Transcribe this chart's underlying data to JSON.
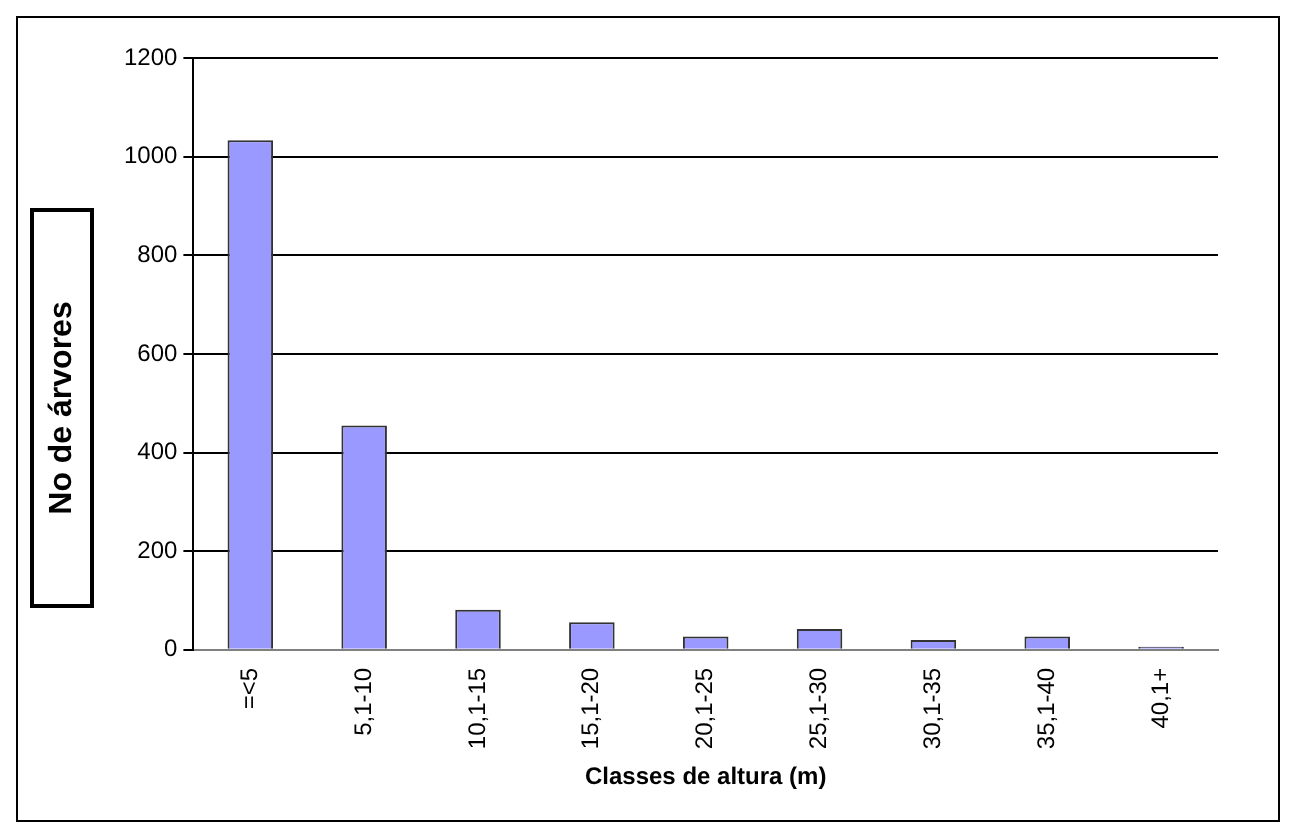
{
  "chart_data": {
    "type": "bar",
    "xlabel": "Classes de altura (m)",
    "ylabel": "No de árvores",
    "categories": [
      "=<5",
      "5,1-10",
      "10,1-15",
      "15,1-20",
      "20,1-25",
      "25,1-30",
      "30,1-35",
      "35,1-40",
      "40,1+"
    ],
    "values": [
      1033,
      455,
      81,
      56,
      27,
      42,
      20,
      27,
      6
    ],
    "color": "#9999ff",
    "ylim": [
      0,
      1200
    ],
    "yticks": [
      0,
      200,
      400,
      600,
      800,
      1000,
      1200
    ],
    "grid": "y",
    "legend": false
  }
}
